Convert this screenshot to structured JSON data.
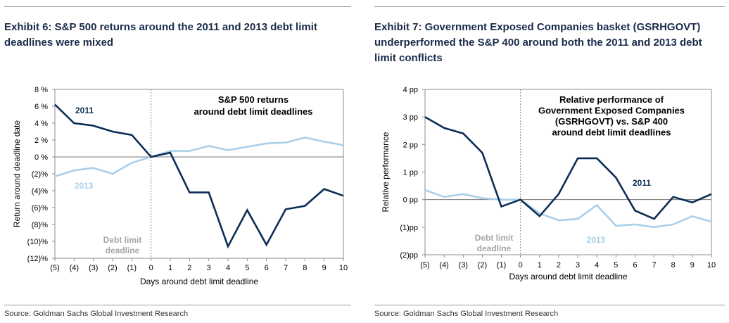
{
  "chart_data": [
    {
      "type": "line",
      "exhibit_title": "Exhibit 6: S&P 500 returns around the 2011 and 2013 debt limit deadlines were mixed",
      "title_lines": [
        "S&P 500 returns",
        "around debt limit deadlines"
      ],
      "xlabel": "Days around debt limit deadline",
      "ylabel": "Return around deadline date",
      "x": [
        -5,
        -4,
        -3,
        -2,
        -1,
        0,
        1,
        2,
        3,
        4,
        5,
        6,
        7,
        8,
        9,
        10
      ],
      "x_tick_labels": [
        "(5)",
        "(4)",
        "(3)",
        "(2)",
        "(1)",
        "0",
        "1",
        "2",
        "3",
        "4",
        "5",
        "6",
        "7",
        "8",
        "9",
        "10"
      ],
      "ylim": [
        -12,
        8
      ],
      "y_ticks": [
        8,
        6,
        4,
        2,
        0,
        -2,
        -4,
        -6,
        -8,
        -10,
        -12
      ],
      "y_tick_labels": [
        "8 %",
        "6 %",
        "4 %",
        "2 %",
        "0 %",
        "(2)%",
        "(4)%",
        "(6)%",
        "(8)%",
        "(10)%",
        "(12)%"
      ],
      "series": [
        {
          "name": "2011",
          "color": "#0b2d55",
          "values": [
            6.2,
            4.0,
            3.7,
            3.0,
            2.6,
            0.0,
            0.5,
            -4.2,
            -4.2,
            -10.6,
            -6.3,
            -10.4,
            -6.2,
            -5.8,
            -3.8,
            -4.6
          ]
        },
        {
          "name": "2013",
          "color": "#a9cfea",
          "values": [
            -2.3,
            -1.6,
            -1.3,
            -2.0,
            -0.7,
            0.0,
            0.7,
            0.7,
            1.3,
            0.8,
            1.2,
            1.6,
            1.7,
            2.3,
            1.8,
            1.4
          ]
        }
      ],
      "deadline_label": [
        "Debt limit",
        "deadline"
      ],
      "source": "Source: Goldman Sachs Global Investment Research"
    },
    {
      "type": "line",
      "exhibit_title": "Exhibit 7: Government Exposed Companies basket (GSRHGOVT) underperformed the S&P 400 around both the 2011 and 2013 debt limit conflicts",
      "title_lines": [
        "Relative performance of",
        "Government Exposed Companies",
        "(GSRHGOVT) vs. S&P 400",
        "around debt limit deadlines"
      ],
      "xlabel": "Days around debt limit deadline",
      "ylabel": "Relative performance",
      "x": [
        -5,
        -4,
        -3,
        -2,
        -1,
        0,
        1,
        2,
        3,
        4,
        5,
        6,
        7,
        8,
        9,
        10
      ],
      "x_tick_labels": [
        "(5)",
        "(4)",
        "(3)",
        "(2)",
        "(1)",
        "0",
        "1",
        "2",
        "3",
        "4",
        "5",
        "6",
        "7",
        "8",
        "9",
        "10"
      ],
      "ylim": [
        -2,
        4
      ],
      "y_ticks": [
        4,
        3,
        2,
        1,
        0,
        -1,
        -2
      ],
      "y_tick_labels": [
        "4 pp",
        "3 pp",
        "2 pp",
        "1 pp",
        "0 pp",
        "(1)pp",
        "(2)pp"
      ],
      "series": [
        {
          "name": "2011",
          "color": "#0b2d55",
          "values": [
            3.0,
            2.6,
            2.4,
            1.7,
            -0.25,
            0.0,
            -0.6,
            0.2,
            1.5,
            1.5,
            0.8,
            -0.4,
            -0.7,
            0.1,
            -0.1,
            0.2
          ]
        },
        {
          "name": "2013",
          "color": "#a9cfea",
          "values": [
            0.35,
            0.1,
            0.2,
            0.05,
            0.0,
            0.0,
            -0.5,
            -0.75,
            -0.7,
            -0.2,
            -0.95,
            -0.9,
            -1.0,
            -0.9,
            -0.6,
            -0.8
          ]
        }
      ],
      "deadline_label": [
        "Debt limit",
        "deadline"
      ],
      "source": "Source: Goldman Sachs Global Investment Research"
    }
  ]
}
